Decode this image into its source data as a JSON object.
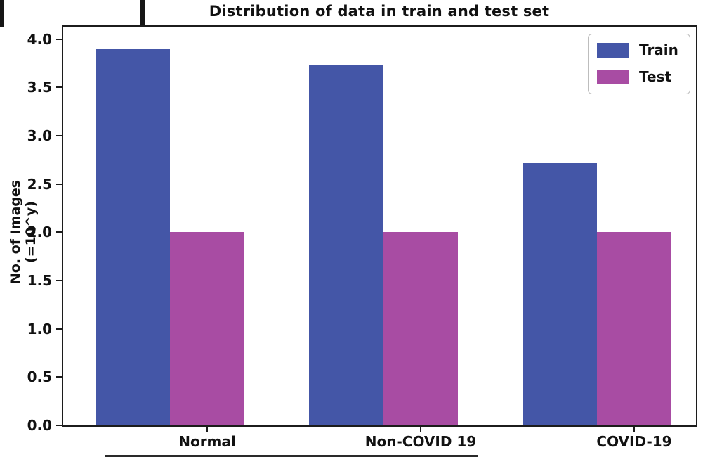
{
  "chart_data": {
    "type": "bar",
    "title": "Distribution of data in train and test set",
    "xlabel": "",
    "ylabel": "No. of Images (=10^y)",
    "categories": [
      "Normal",
      "Non-COVID 19",
      "COVID-19"
    ],
    "series": [
      {
        "name": "Train",
        "color": "#4456a7",
        "values": [
          3.9,
          3.74,
          2.72
        ]
      },
      {
        "name": "Test",
        "color": "#a84ca3",
        "values": [
          2.0,
          2.0,
          2.0
        ]
      }
    ],
    "ylim": [
      0.0,
      4.13
    ],
    "yticks": [
      "0.0",
      "0.5",
      "1.0",
      "1.5",
      "2.0",
      "2.5",
      "3.0",
      "3.5",
      "4.0"
    ],
    "grid": false,
    "legend_position": "upper right"
  },
  "colors": {
    "spine": "#1c1c1c",
    "text": "#111111",
    "legend_border": "#bdbdbd"
  }
}
